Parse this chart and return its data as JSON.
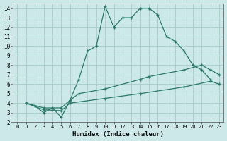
{
  "xlabel": "Humidex (Indice chaleur)",
  "bg_color": "#cce8e8",
  "line_color": "#2a7a6a",
  "grid_color": "#aacfcf",
  "xlim": [
    -0.5,
    23.5
  ],
  "ylim": [
    2,
    14.5
  ],
  "xticks": [
    0,
    1,
    2,
    3,
    4,
    5,
    6,
    7,
    8,
    9,
    10,
    11,
    12,
    13,
    14,
    15,
    16,
    17,
    18,
    19,
    20,
    21,
    22,
    23
  ],
  "yticks": [
    2,
    3,
    4,
    5,
    6,
    7,
    8,
    9,
    10,
    11,
    12,
    13,
    14
  ],
  "line1_x": [
    1,
    2,
    3,
    4,
    5,
    6,
    7,
    8,
    9,
    10,
    11,
    12,
    13,
    14,
    15,
    16,
    17,
    18,
    19,
    20,
    21,
    22
  ],
  "line1_y": [
    4,
    3.7,
    3.0,
    3.5,
    2.5,
    4.3,
    6.5,
    9.5,
    10.0,
    14.2,
    12.0,
    13.0,
    13.0,
    14.0,
    14.0,
    13.3,
    11.0,
    10.5,
    9.5,
    8.0,
    7.5,
    6.5
  ],
  "line2_x": [
    1,
    3,
    5,
    6,
    7,
    10,
    14,
    15,
    19,
    21,
    22,
    23
  ],
  "line2_y": [
    4.0,
    3.5,
    3.5,
    4.3,
    5.0,
    5.5,
    6.5,
    6.8,
    7.5,
    8.0,
    7.5,
    7.0
  ],
  "line3_x": [
    1,
    3,
    5,
    6,
    10,
    14,
    19,
    22,
    23
  ],
  "line3_y": [
    4.0,
    3.3,
    3.2,
    4.0,
    4.5,
    5.0,
    5.7,
    6.3,
    6.0
  ]
}
